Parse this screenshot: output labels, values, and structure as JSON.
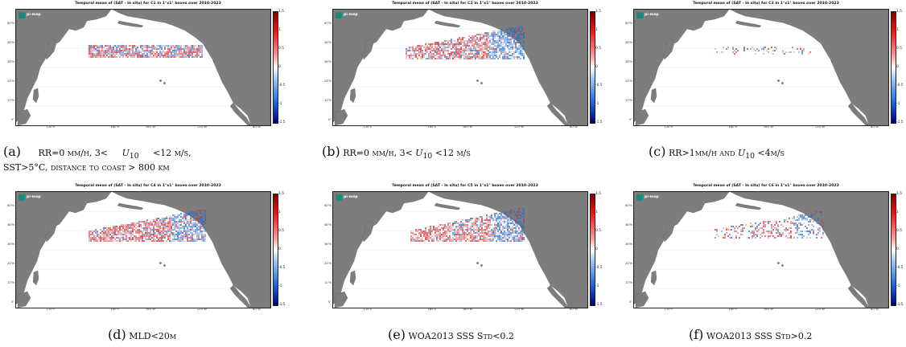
{
  "panels": [
    {
      "title": "Temporal mean of (SAT - In situ) for C1 in 1°x1° boxes over 2010-2023"
    },
    {
      "title": "Temporal mean of (SAT - In situ) for C2 in 1°x1° boxes over 2010-2023"
    },
    {
      "title": "Temporal mean of (SAT - In situ) for C3 in 1°x1° boxes over 2010-2023"
    },
    {
      "title": "Temporal mean of (SAT - In situ) for C4 in 1°x1° boxes over 2010-2023"
    },
    {
      "title": "Temporal mean of (SAT - In situ) for C5 in 1°x1° boxes over 2010-2023"
    },
    {
      "title": "Temporal mean of (SAT - In situ) for C6 in 1°x1° boxes over 2010-2023"
    }
  ],
  "lat_labels": [
    "60°N",
    "48°N",
    "36°N",
    "24°N",
    "12°N",
    "0°"
  ],
  "lon_labels": [
    "120°E",
    "160°E",
    "160°W",
    "120°W",
    "80°W"
  ],
  "colorbar_ticks": [
    "1.5",
    "1",
    "0.5",
    "0",
    "-0.5",
    "-1",
    "-1.5"
  ],
  "logo_text": "pi-mep",
  "colors": {
    "land": "#7d7d7d",
    "positive": "#d62b2b",
    "negative": "#1f6fd1",
    "cbar_top": "#7a0000",
    "cbar_bottom": "#00006e"
  },
  "captions": [
    {
      "tag": "(a)",
      "l1": "RR=0 mm/h, 3<",
      "u": "U",
      "sub": "10",
      "l2": "<12 m/s,",
      "l3": "SST>5°C, distance to coast > 800 km"
    },
    {
      "tag": "(b)",
      "l1": "RR=0 mm/h, 3<",
      "u": "U",
      "sub": "10",
      "l2": "<12 m/s"
    },
    {
      "tag": "(c)",
      "l1": "RR>1mm/h and",
      "u": "U",
      "sub": "10",
      "l2": "<4m/s"
    },
    {
      "tag": "(d)",
      "l1": "MLD<20m"
    },
    {
      "tag": "(e)",
      "l1": "WOA2013 SSS Std<0.2"
    },
    {
      "tag": "(f)",
      "l1": "WOA2013 SSS Std>0.2"
    }
  ]
}
